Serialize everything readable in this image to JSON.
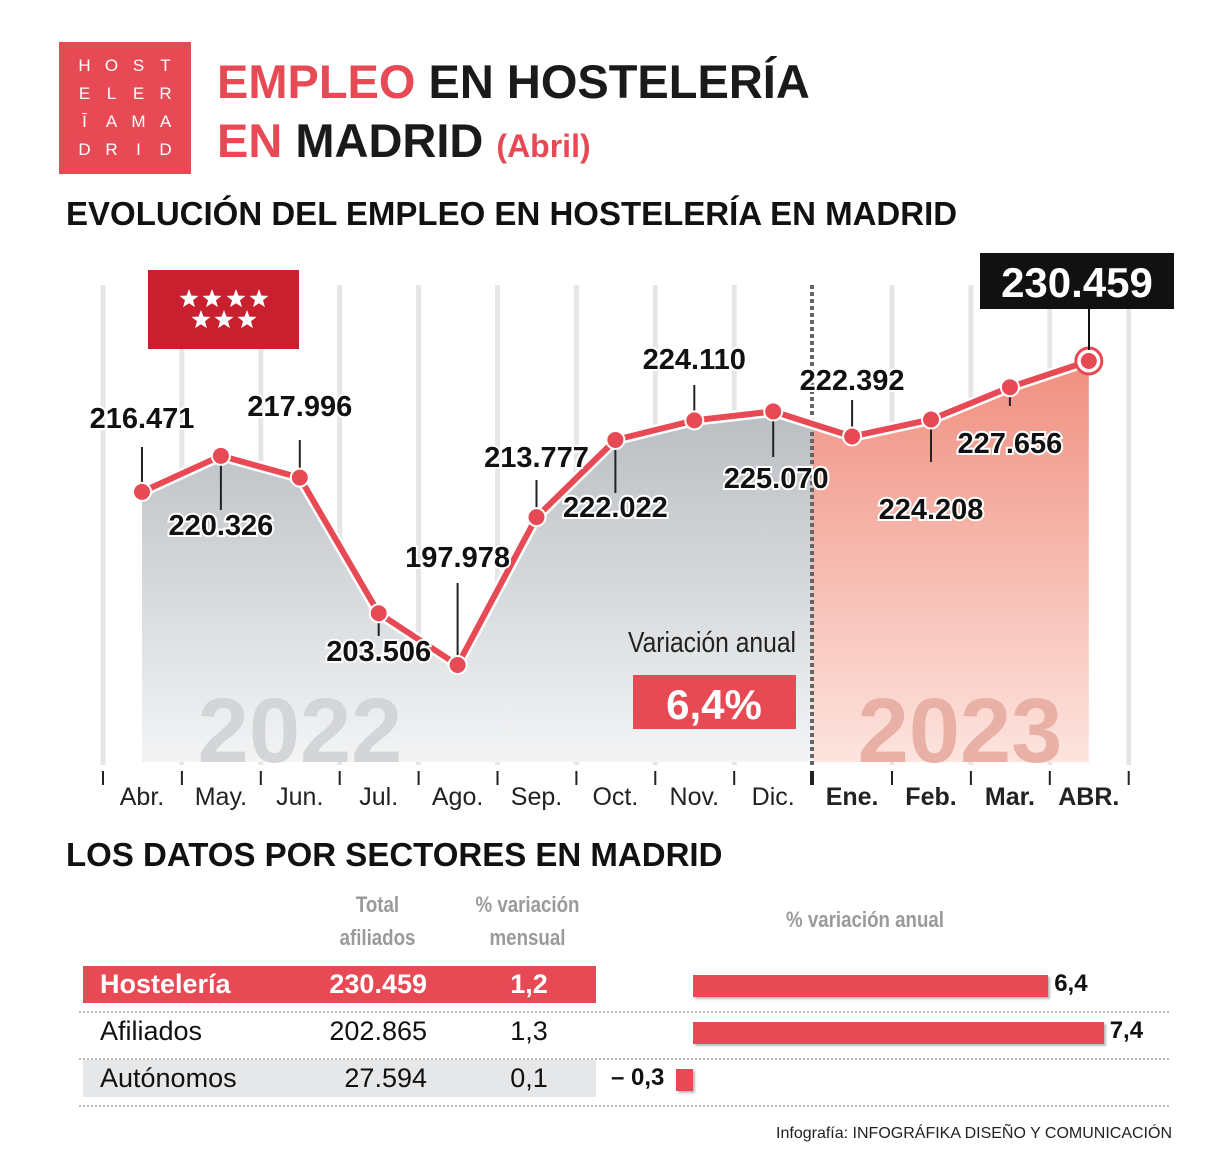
{
  "logo": {
    "letters": [
      "H",
      "O",
      "S",
      "T",
      "E",
      "L",
      "E",
      "R",
      "Ī",
      "A",
      "M",
      "A",
      "D",
      "R",
      "I",
      "D"
    ]
  },
  "header": {
    "title_red_1": "EMPLEO",
    "title_black_1": " EN HOSTELERÍA",
    "title_red_2": "EN",
    "title_black_2": " MADRID",
    "subtitle": "(Abril)"
  },
  "chart_section_title": "EVOLUCIÓN DEL EMPLEO EN HOSTELERÍA EN MADRID",
  "chart_data": {
    "type": "line",
    "categories": [
      "Abr.",
      "May.",
      "Jun.",
      "Jul.",
      "Ago.",
      "Sep.",
      "Oct.",
      "Nov.",
      "Dic.",
      "Ene.",
      "Feb.",
      "Mar.",
      "ABR."
    ],
    "values": [
      216.471,
      220.326,
      217.996,
      203.506,
      197.978,
      213.777,
      222.022,
      224.11,
      225.07,
      222.392,
      224.208,
      227.656,
      230.459
    ],
    "value_labels": [
      "216.471",
      "220.326",
      "217.996",
      "203.506",
      "197.978",
      "213.777",
      "222.022",
      "224.110",
      "225.070",
      "222.392",
      "224.208",
      "227.656",
      "230.459"
    ],
    "years": [
      "2022",
      "2023"
    ],
    "highlight_value": "230.459",
    "annotation_label": "Variación anual",
    "annotation_value": "6,4%",
    "colors": {
      "line": "#e84a55",
      "area_2022": "#c9cdd0",
      "area_2023": "#f4a293",
      "highlight_box": "#111111"
    }
  },
  "sectors": {
    "title": "LOS DATOS POR SECTORES EN MADRID",
    "headers": {
      "total_1": "Total",
      "total_2": "afiliados",
      "monthly_1": "% variación",
      "monthly_2": "mensual",
      "annual": "% variación anual"
    },
    "rows": [
      {
        "name": "Hostelería",
        "total": "230.459",
        "monthly": "1,2",
        "annual": 6.4,
        "annual_label": "6,4"
      },
      {
        "name": "Afiliados",
        "total": "202.865",
        "monthly": "1,3",
        "annual": 7.4,
        "annual_label": "7,4"
      },
      {
        "name": "Autónomos",
        "total": "27.594",
        "monthly": "0,1",
        "annual": -0.3,
        "annual_label": "– 0,3"
      }
    ]
  },
  "credit": {
    "prefix": "Infografía: ",
    "name": "INFOGRÁFIKA DISEÑO Y COMUNICACIÓN"
  }
}
